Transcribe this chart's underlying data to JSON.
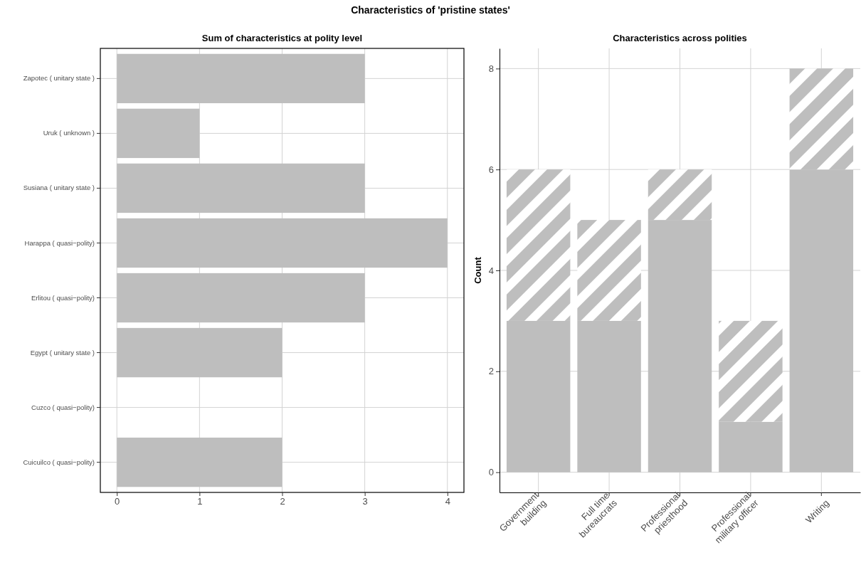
{
  "chart_data": [
    {
      "type": "bar",
      "orientation": "horizontal",
      "title": "Sum of characteristics at polity level",
      "annotations": [
        "Characteristics of 'pristine states'"
      ],
      "categories": [
        "Zapotec ( unitary state )",
        "Uruk ( unknown )",
        "Susiana ( unitary state )",
        "Harappa ( quasi−polity)",
        "Erlitou ( quasi−polity)",
        "Egypt ( unitary state )",
        "Cuzco ( quasi−polity)",
        "Cuicuilco ( quasi−polity)"
      ],
      "values": [
        3,
        1,
        3,
        4,
        3,
        2,
        0,
        2
      ],
      "color": "#bebebe",
      "xlim": [
        -0.2,
        4.2
      ],
      "xticks": [
        0,
        1,
        2,
        3,
        4
      ],
      "grid": true
    },
    {
      "type": "bar",
      "stacked": true,
      "title": "Characteristics across polities",
      "ylabel": "Count",
      "categories": [
        "Government\nbuilding",
        "Full time\nbureaucrats",
        "Professional\npriesthood",
        "Professional\nmilitary officer",
        "Writing"
      ],
      "series": [
        {
          "color": "#bebebe",
          "values": [
            3,
            3,
            5,
            1,
            6
          ]
        },
        {
          "color": "#bebebe",
          "values": [
            3,
            2,
            1,
            2,
            2
          ]
        }
      ],
      "ylim": [
        -0.4,
        8.4
      ],
      "yticks": [
        0,
        2,
        4,
        6,
        8
      ],
      "grid": true
    }
  ]
}
